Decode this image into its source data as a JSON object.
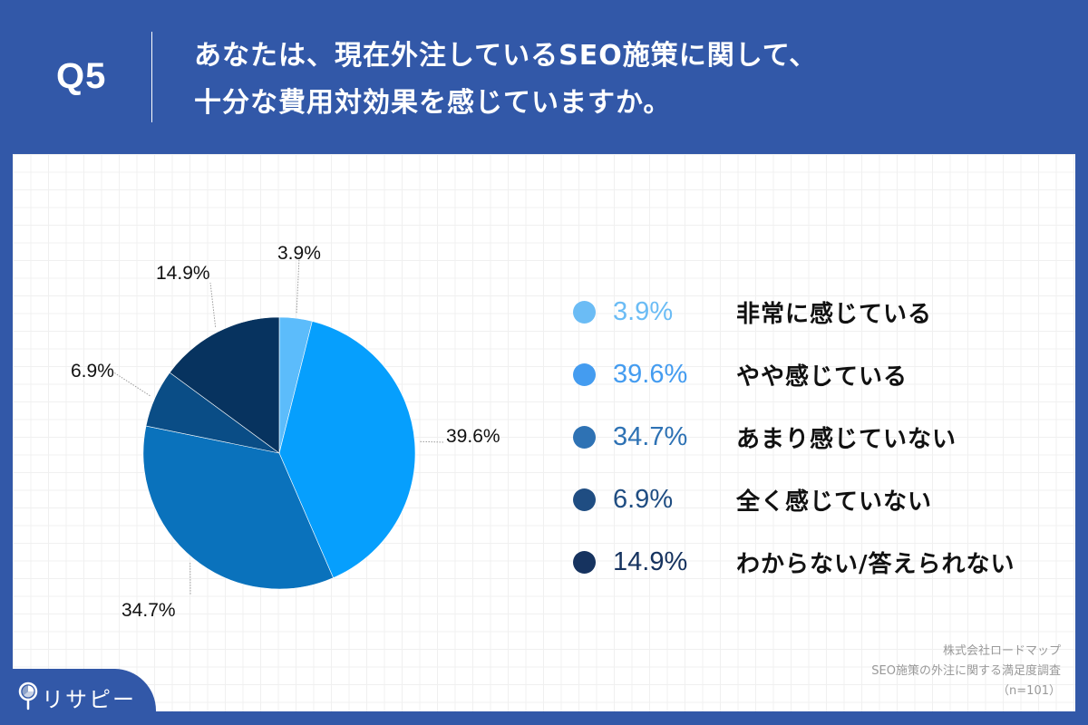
{
  "header": {
    "question_number": "Q5",
    "title_line1": "あなたは、現在外注しているSEO施策に関して、",
    "title_line2": "十分な費用対効果を感じていますか。"
  },
  "colors": {
    "background": "#3258a8",
    "card": "#ffffff",
    "slice_1": "#5cbcfb",
    "slice_2": "#069ffd",
    "slice_3": "#0a72bc",
    "slice_4": "#0a4d86",
    "slice_5": "#07335f",
    "legend_1": "#6bbcf5",
    "legend_2": "#449cf0",
    "legend_3": "#2e72b4",
    "legend_4": "#1f4d82",
    "legend_5": "#16335f"
  },
  "chart_data": {
    "type": "pie",
    "title": "あなたは、現在外注しているSEO施策に関して、十分な費用対効果を感じていますか。",
    "categories": [
      "非常に感じている",
      "やや感じている",
      "あまり感じていない",
      "全く感じていない",
      "わからない/答えられない"
    ],
    "values": [
      3.9,
      39.6,
      34.7,
      6.9,
      14.9
    ],
    "unit": "%",
    "start_angle": "12 o'clock",
    "direction": "clockwise",
    "legend_position": "right",
    "n": 101
  },
  "pie_labels": [
    "3.9%",
    "39.6%",
    "34.7%",
    "6.9%",
    "14.9%"
  ],
  "legend": [
    {
      "pct": "3.9%",
      "label": "非常に感じている"
    },
    {
      "pct": "39.6%",
      "label": "やや感じている"
    },
    {
      "pct": "34.7%",
      "label": "あまり感じていない"
    },
    {
      "pct": "6.9%",
      "label": "全く感じていない"
    },
    {
      "pct": "14.9%",
      "label": "わからない/答えられない"
    }
  ],
  "source": {
    "line1": "株式会社ロードマップ",
    "line2": "SEO施策の外注に関する満足度調査",
    "line3": "（n=101）"
  },
  "brand": {
    "name": "リサピー",
    "icon": "magnifier-pie-icon"
  }
}
